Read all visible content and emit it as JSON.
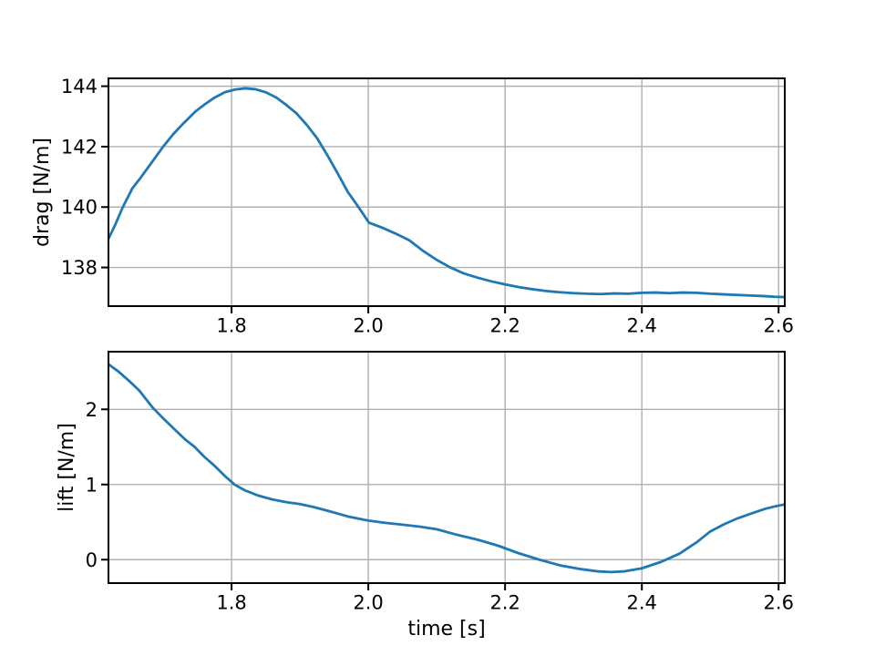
{
  "figure": {
    "kind": "matplotlib-line-figure",
    "background": "#ffffff",
    "line_color": "#1f77b4",
    "grid_color": "#b0b0b0",
    "spine_color": "#000000",
    "text_color": "#000000"
  },
  "chart_data": [
    {
      "type": "line",
      "title": "",
      "xlabel": "",
      "ylabel": "drag [N/m]",
      "grid": true,
      "legend": false,
      "xlim": [
        1.62,
        2.609
      ],
      "ylim": [
        136.72,
        144.26
      ],
      "xticks": [
        1.8,
        2.0,
        2.2,
        2.4,
        2.6
      ],
      "xtick_labels": [
        "1.8",
        "2.0",
        "2.2",
        "2.4",
        "2.6"
      ],
      "yticks": [
        138,
        140,
        142,
        144
      ],
      "ytick_labels": [
        "138",
        "140",
        "142",
        "144"
      ],
      "series": [
        {
          "name": "drag",
          "x": [
            1.62,
            1.63,
            1.641,
            1.655,
            1.668,
            1.684,
            1.7,
            1.715,
            1.73,
            1.748,
            1.762,
            1.775,
            1.79,
            1.805,
            1.82,
            1.835,
            1.85,
            1.865,
            1.88,
            1.895,
            1.91,
            1.925,
            1.94,
            1.955,
            1.97,
            1.985,
            2.001,
            2.02,
            2.04,
            2.06,
            2.08,
            2.1,
            2.12,
            2.14,
            2.16,
            2.18,
            2.2,
            2.22,
            2.24,
            2.26,
            2.28,
            2.3,
            2.32,
            2.34,
            2.36,
            2.38,
            2.4,
            2.42,
            2.44,
            2.46,
            2.48,
            2.5,
            2.52,
            2.54,
            2.56,
            2.58,
            2.595,
            2.609
          ],
          "y": [
            138.95,
            139.42,
            140.0,
            140.62,
            141.0,
            141.5,
            142.0,
            142.42,
            142.78,
            143.18,
            143.42,
            143.62,
            143.8,
            143.89,
            143.93,
            143.9,
            143.8,
            143.63,
            143.38,
            143.1,
            142.72,
            142.28,
            141.72,
            141.12,
            140.5,
            140.02,
            139.48,
            139.32,
            139.12,
            138.9,
            138.55,
            138.25,
            138.0,
            137.8,
            137.66,
            137.54,
            137.44,
            137.35,
            137.28,
            137.22,
            137.18,
            137.15,
            137.13,
            137.12,
            137.14,
            137.13,
            137.16,
            137.17,
            137.15,
            137.17,
            137.16,
            137.13,
            137.11,
            137.09,
            137.07,
            137.05,
            137.03,
            137.02
          ]
        }
      ]
    },
    {
      "type": "line",
      "title": "",
      "xlabel": "time [s]",
      "ylabel": "lift [N/m]",
      "grid": true,
      "legend": false,
      "xlim": [
        1.62,
        2.609
      ],
      "ylim": [
        -0.312,
        2.767
      ],
      "xticks": [
        1.8,
        2.0,
        2.2,
        2.4,
        2.6
      ],
      "xtick_labels": [
        "1.8",
        "2.0",
        "2.2",
        "2.4",
        "2.6"
      ],
      "yticks": [
        0,
        1,
        2
      ],
      "ytick_labels": [
        "0",
        "1",
        "2"
      ],
      "series": [
        {
          "name": "lift",
          "x": [
            1.62,
            1.635,
            1.65,
            1.665,
            1.684,
            1.7,
            1.716,
            1.732,
            1.746,
            1.76,
            1.775,
            1.79,
            1.805,
            1.82,
            1.84,
            1.86,
            1.88,
            1.9,
            1.92,
            1.945,
            1.97,
            2.0,
            2.025,
            2.05,
            2.075,
            2.1,
            2.13,
            2.16,
            2.19,
            2.22,
            2.25,
            2.28,
            2.31,
            2.335,
            2.355,
            2.375,
            2.4,
            2.428,
            2.455,
            2.48,
            2.5,
            2.52,
            2.54,
            2.565,
            2.58,
            2.595,
            2.609
          ],
          "y": [
            2.6,
            2.5,
            2.38,
            2.25,
            2.03,
            1.88,
            1.74,
            1.6,
            1.5,
            1.37,
            1.25,
            1.115,
            0.995,
            0.92,
            0.85,
            0.8,
            0.765,
            0.74,
            0.7,
            0.64,
            0.575,
            0.52,
            0.49,
            0.465,
            0.44,
            0.405,
            0.33,
            0.265,
            0.185,
            0.085,
            0.0,
            -0.075,
            -0.125,
            -0.155,
            -0.165,
            -0.155,
            -0.115,
            -0.03,
            0.08,
            0.23,
            0.375,
            0.47,
            0.55,
            0.63,
            0.675,
            0.71,
            0.735
          ]
        }
      ]
    }
  ]
}
